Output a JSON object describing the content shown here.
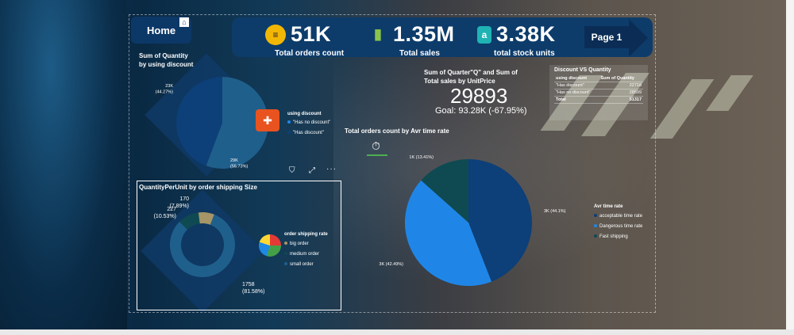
{
  "nav": {
    "home_label": "Home",
    "page_label": "Page 1"
  },
  "kpis": [
    {
      "value": "51K",
      "label": "Total orders count",
      "icon": "receipt-icon",
      "color": "#f2b705"
    },
    {
      "value": "1.35M",
      "label": "Total sales",
      "icon": "bar-chart-icon",
      "color": "#8bc34a"
    },
    {
      "value": "3.38K",
      "label": "total stock units",
      "icon": "stock-icon",
      "color": "#1fb3b3"
    }
  ],
  "discount_card": {
    "title_line1": "Sum of Quantity",
    "title_line2": "by using discount",
    "legend_title": "using discount",
    "legend_items": [
      "\"Has no discount\"",
      "\"Has discount\""
    ]
  },
  "gauge_card": {
    "title_line1": "Sum of Quarter\"Q\" and Sum of",
    "title_line2": "Total sales by UnitPrice",
    "value": "29893",
    "goal": "Goal: 93.28K (-67.95%)"
  },
  "table_card": {
    "title": "Discount VS Quantity",
    "headers": [
      "using discount",
      "Sum of Quantity"
    ],
    "rows": [
      [
        "\"Has discount\"",
        "22718"
      ],
      [
        "\"Has no discount\"",
        "28599"
      ]
    ],
    "total": [
      "Total",
      "51317"
    ]
  },
  "time_card": {
    "title": "Total orders count by Avr time rate",
    "legend_title": "Avr time rate",
    "legend_items": [
      "acceptable time rate",
      "Dangerous time rate",
      "Fast shipping"
    ]
  },
  "shipping_card": {
    "title": "QuantityPerUnit by order shipping Size",
    "legend_title": "order shipping rate",
    "legend_items": [
      "big order",
      "medium order",
      "small order"
    ]
  },
  "colors": {
    "accent_dark": "#0c3867",
    "pie_dark": "#0d3f78",
    "pie_light": "#1f86e8",
    "pie_teal": "#0f4a52",
    "donut_blue": "#1f5f8b",
    "donut_tan": "#a69566"
  },
  "chart_data": [
    {
      "type": "pie",
      "title": "Sum of Quantity by using discount",
      "categories": [
        "\"Has no discount\"",
        "\"Has discount\""
      ],
      "values": [
        28599,
        22718
      ],
      "data_labels": [
        "29K (55.73%)",
        "23K (44.27%)"
      ]
    },
    {
      "type": "pie",
      "title": "Total orders count by Avr time rate",
      "categories": [
        "acceptable time rate",
        "Dangerous time rate",
        "Fast shipping"
      ],
      "values": [
        44.1,
        42.49,
        13.41
      ],
      "data_labels": [
        "3K (44.1%)",
        "3K (42.49%)",
        "1K (13.41%)"
      ]
    },
    {
      "type": "pie",
      "title": "QuantityPerUnit by order shipping Size",
      "categories": [
        "big order",
        "medium order",
        "small order"
      ],
      "values": [
        227,
        170,
        1758
      ],
      "data_labels": [
        "227 (10.53%)",
        "170 (7.89%)",
        "1758 (81.58%)"
      ]
    }
  ]
}
